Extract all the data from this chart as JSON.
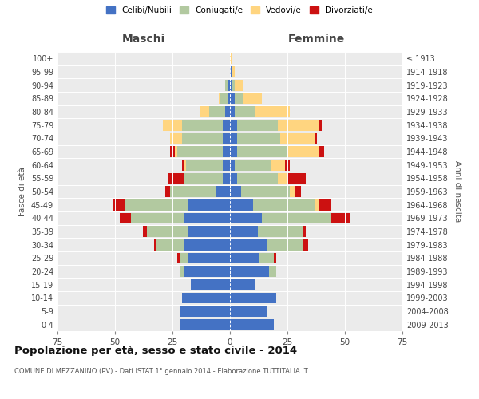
{
  "age_groups": [
    "0-4",
    "5-9",
    "10-14",
    "15-19",
    "20-24",
    "25-29",
    "30-34",
    "35-39",
    "40-44",
    "45-49",
    "50-54",
    "55-59",
    "60-64",
    "65-69",
    "70-74",
    "75-79",
    "80-84",
    "85-89",
    "90-94",
    "95-99",
    "100+"
  ],
  "birth_years": [
    "2009-2013",
    "2004-2008",
    "1999-2003",
    "1994-1998",
    "1989-1993",
    "1984-1988",
    "1979-1983",
    "1974-1978",
    "1969-1973",
    "1964-1968",
    "1959-1963",
    "1954-1958",
    "1949-1953",
    "1944-1948",
    "1939-1943",
    "1934-1938",
    "1929-1933",
    "1924-1928",
    "1919-1923",
    "1914-1918",
    "≤ 1913"
  ],
  "male": {
    "celibe": [
      22,
      22,
      21,
      17,
      20,
      18,
      20,
      18,
      20,
      18,
      6,
      3,
      3,
      3,
      3,
      3,
      2,
      1,
      1,
      0,
      0
    ],
    "coniugato": [
      0,
      0,
      0,
      0,
      2,
      4,
      12,
      18,
      23,
      28,
      20,
      17,
      16,
      20,
      18,
      18,
      7,
      3,
      1,
      0,
      0
    ],
    "vedovo": [
      0,
      0,
      0,
      0,
      0,
      0,
      0,
      0,
      0,
      0,
      0,
      0,
      1,
      1,
      5,
      8,
      4,
      1,
      0,
      0,
      0
    ],
    "divorziato": [
      0,
      0,
      0,
      0,
      0,
      1,
      1,
      2,
      5,
      5,
      2,
      7,
      1,
      2,
      0,
      0,
      0,
      0,
      0,
      0,
      0
    ]
  },
  "female": {
    "nubile": [
      19,
      16,
      20,
      11,
      17,
      13,
      16,
      12,
      14,
      10,
      5,
      3,
      2,
      3,
      3,
      3,
      2,
      2,
      1,
      1,
      0
    ],
    "coniugata": [
      0,
      0,
      0,
      0,
      3,
      6,
      16,
      20,
      30,
      27,
      21,
      18,
      16,
      22,
      19,
      18,
      9,
      4,
      1,
      0,
      0
    ],
    "vedova": [
      0,
      0,
      0,
      0,
      0,
      0,
      0,
      0,
      0,
      2,
      2,
      4,
      6,
      14,
      15,
      18,
      15,
      8,
      4,
      1,
      1
    ],
    "divorziata": [
      0,
      0,
      0,
      0,
      0,
      1,
      2,
      1,
      8,
      5,
      3,
      8,
      2,
      2,
      1,
      1,
      0,
      0,
      0,
      0,
      0
    ]
  },
  "colors": {
    "celibe": "#4472c4",
    "coniugato": "#b2c9a0",
    "vedovo": "#ffd580",
    "divorziato": "#cc1111"
  },
  "xlim": 75,
  "title": "Popolazione per età, sesso e stato civile - 2014",
  "subtitle": "COMUNE DI MEZZANINO (PV) - Dati ISTAT 1° gennaio 2014 - Elaborazione TUTTITALIA.IT",
  "legend_labels": [
    "Celibi/Nubili",
    "Coniugati/e",
    "Vedovi/e",
    "Divorziati/e"
  ],
  "ylabel_left": "Fasce di età",
  "ylabel_right": "Anni di nascita",
  "xlabel_left": "Maschi",
  "xlabel_right": "Femmine",
  "bg_color": "#ebebeb",
  "bar_height": 0.82
}
